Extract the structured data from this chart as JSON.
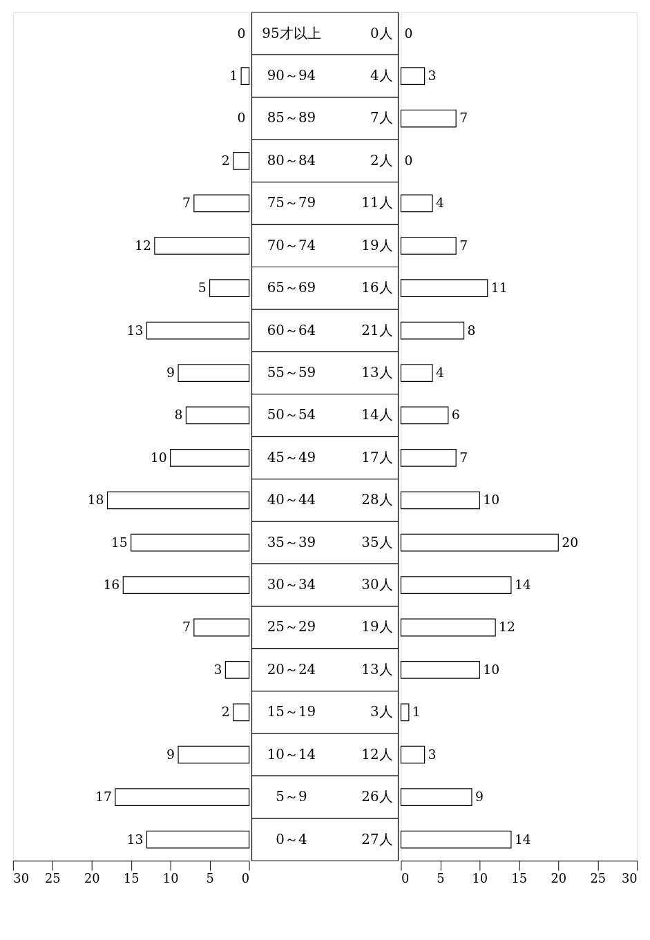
{
  "chart_data": [
    {
      "type": "bar",
      "orientation": "horizontal",
      "categories": [
        "95才以上",
        "90～94",
        "85～89",
        "80～84",
        "75～79",
        "70～74",
        "65～69",
        "60～64",
        "55～59",
        "50～54",
        "45～49",
        "40～44",
        "35～39",
        "30～34",
        "25～29",
        "20～24",
        "15～19",
        "10～14",
        "5～9",
        "0～4"
      ],
      "series": [
        {
          "color": "#ffffff",
          "values": [
            0,
            1,
            0,
            2,
            7,
            12,
            5,
            13,
            9,
            8,
            10,
            18,
            15,
            16,
            7,
            3,
            2,
            9,
            17,
            13
          ]
        }
      ],
      "annotations": [
        "0人",
        "4人",
        "7人",
        "2人",
        "11人",
        "19人",
        "16人",
        "21人",
        "13人",
        "14人",
        "17人",
        "28人",
        "35人",
        "30人",
        "19人",
        "13人",
        "3人",
        "12人",
        "26人",
        "27人"
      ],
      "xlim": [
        30,
        0
      ],
      "xticks": [
        30,
        25,
        20,
        15,
        10,
        5,
        0
      ],
      "data_labels": true,
      "grid": false,
      "tick_labels": "x"
    },
    {
      "type": "bar",
      "orientation": "horizontal",
      "categories": [
        null,
        null,
        null,
        null,
        null,
        null,
        null,
        null,
        null,
        null,
        null,
        null,
        null,
        null,
        null,
        null,
        null,
        null,
        null,
        null
      ],
      "series": [
        {
          "color": "#ffffff",
          "values": [
            0,
            3,
            7,
            0,
            4,
            7,
            11,
            8,
            4,
            6,
            7,
            10,
            20,
            14,
            12,
            10,
            1,
            3,
            9,
            14
          ]
        }
      ],
      "xlim": [
        0,
        30
      ],
      "xticks": [
        0,
        5,
        10,
        15,
        20,
        25,
        30
      ],
      "data_labels": true,
      "grid": false,
      "tick_labels": "x"
    }
  ]
}
